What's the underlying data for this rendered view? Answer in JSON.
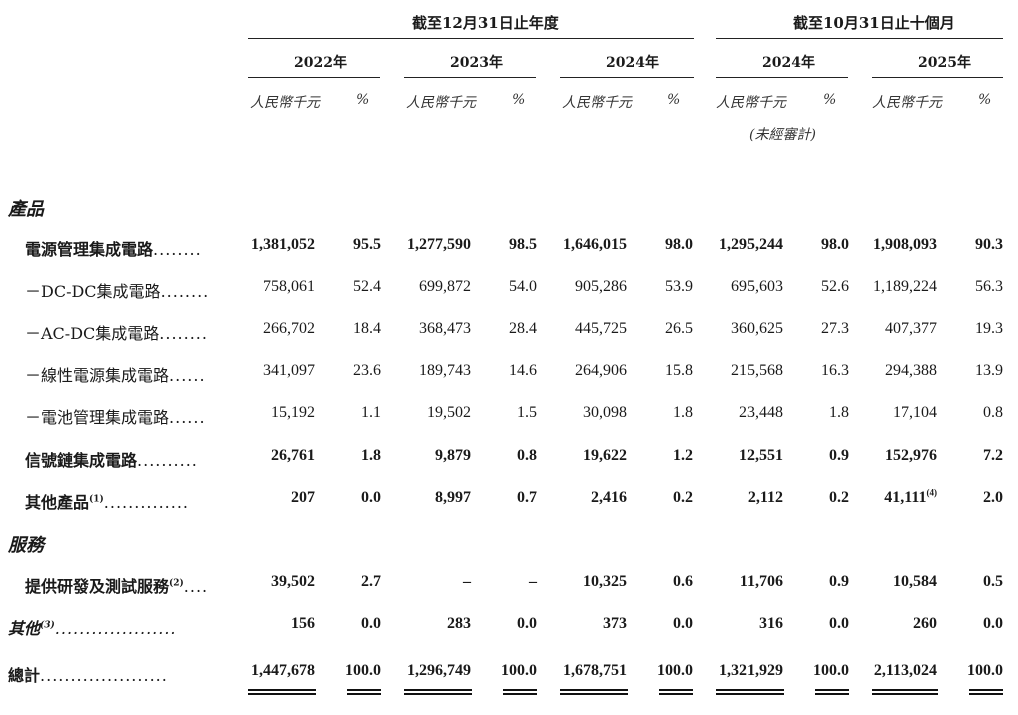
{
  "header": {
    "period_fy": "截至12月31日止年度",
    "period_10m": "截至10月31日止十個月",
    "years": [
      "2022年",
      "2023年",
      "2024年",
      "2024年",
      "2025年"
    ],
    "unit_rmb": "人民幣千元",
    "unit_pct": "%",
    "unaudited": "(未經審計)"
  },
  "sections": {
    "products": "產品",
    "services": "服務"
  },
  "rows": [
    {
      "label": "電源管理集成電路",
      "dots": "........",
      "sup": "",
      "bold": true,
      "values": [
        "1,381,052",
        "95.5",
        "1,277,590",
        "98.5",
        "1,646,015",
        "98.0",
        "1,295,244",
        "98.0",
        "1,908,093",
        "90.3"
      ]
    },
    {
      "label": "－DC-DC集成電路",
      "dots": "........",
      "sup": "",
      "bold": false,
      "values": [
        "758,061",
        "52.4",
        "699,872",
        "54.0",
        "905,286",
        "53.9",
        "695,603",
        "52.6",
        "1,189,224",
        "56.3"
      ]
    },
    {
      "label": "－AC-DC集成電路",
      "dots": "........",
      "sup": "",
      "bold": false,
      "values": [
        "266,702",
        "18.4",
        "368,473",
        "28.4",
        "445,725",
        "26.5",
        "360,625",
        "27.3",
        "407,377",
        "19.3"
      ]
    },
    {
      "label": "－線性電源集成電路",
      "dots": "......",
      "sup": "",
      "bold": false,
      "values": [
        "341,097",
        "23.6",
        "189,743",
        "14.6",
        "264,906",
        "15.8",
        "215,568",
        "16.3",
        "294,388",
        "13.9"
      ]
    },
    {
      "label": "－電池管理集成電路",
      "dots": "......",
      "sup": "",
      "bold": false,
      "values": [
        "15,192",
        "1.1",
        "19,502",
        "1.5",
        "30,098",
        "1.8",
        "23,448",
        "1.8",
        "17,104",
        "0.8"
      ]
    },
    {
      "label": "信號鏈集成電路",
      "dots": "..........",
      "sup": "",
      "bold": true,
      "values": [
        "26,761",
        "1.8",
        "9,879",
        "0.8",
        "19,622",
        "1.2",
        "12,551",
        "0.9",
        "152,976",
        "7.2"
      ]
    },
    {
      "label": "其他產品",
      "dots": "..............",
      "sup": "(1)",
      "bold": true,
      "values": [
        "207",
        "0.0",
        "8,997",
        "0.7",
        "2,416",
        "0.2",
        "2,112",
        "0.2",
        "41,111",
        "2.0"
      ],
      "value_sup": "(4)"
    },
    {
      "label": "提供研發及測試服務",
      "dots": "....",
      "sup": "(2)",
      "bold": true,
      "values": [
        "39,502",
        "2.7",
        "–",
        "–",
        "10,325",
        "0.6",
        "11,706",
        "0.9",
        "10,584",
        "0.5"
      ]
    },
    {
      "label": "其他",
      "dots": "....................",
      "sup": "(3)",
      "bold": true,
      "italic": true,
      "values": [
        "156",
        "0.0",
        "283",
        "0.0",
        "373",
        "0.0",
        "316",
        "0.0",
        "260",
        "0.0"
      ]
    },
    {
      "label": "總計",
      "dots": ".....................",
      "sup": "",
      "bold": true,
      "values": [
        "1,447,678",
        "100.0",
        "1,296,749",
        "100.0",
        "1,678,751",
        "100.0",
        "1,321,929",
        "100.0",
        "2,113,024",
        "100.0"
      ]
    }
  ]
}
